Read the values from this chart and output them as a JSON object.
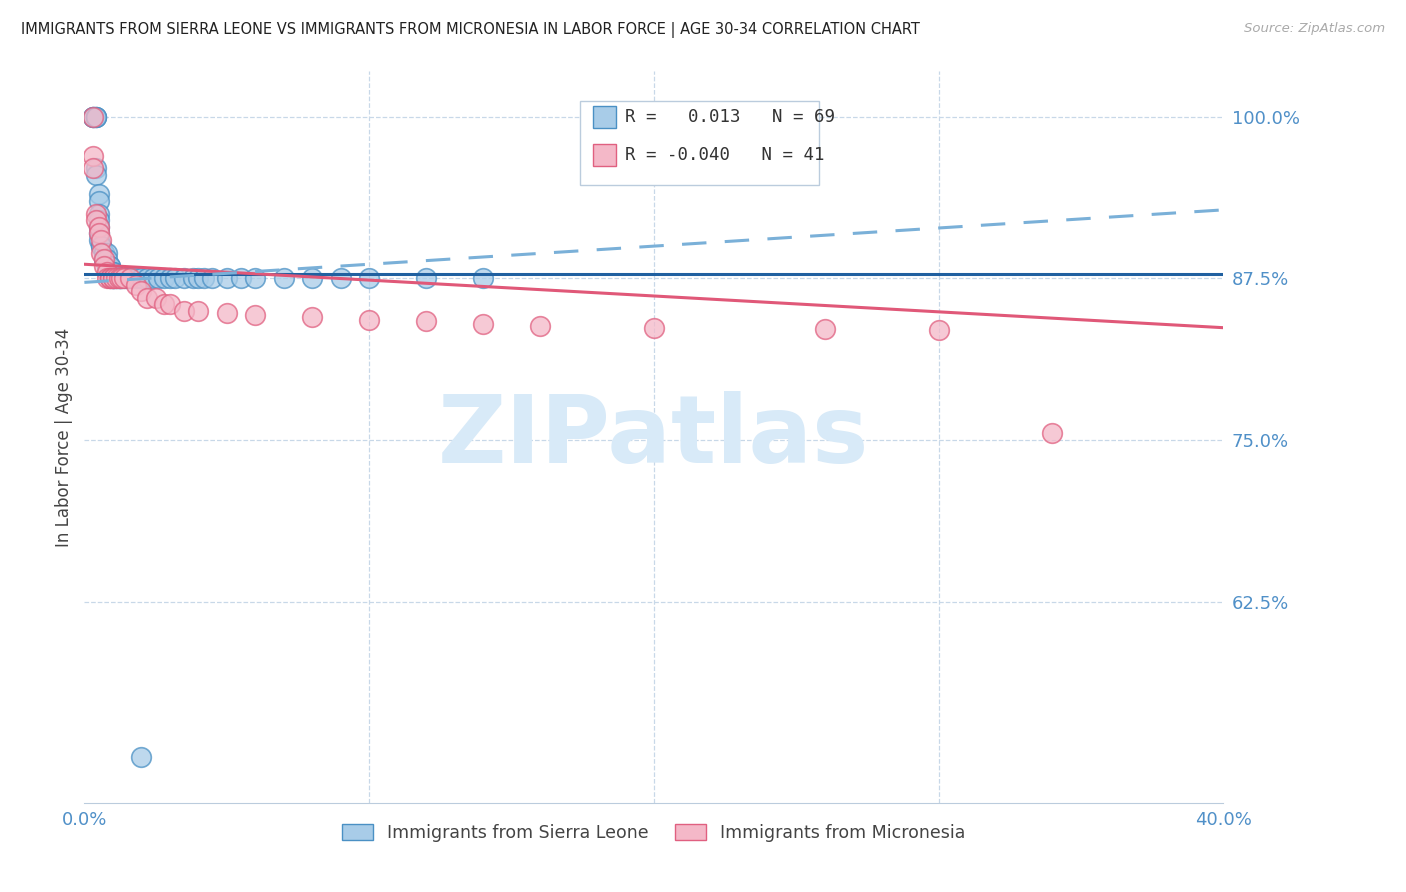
{
  "title": "IMMIGRANTS FROM SIERRA LEONE VS IMMIGRANTS FROM MICRONESIA IN LABOR FORCE | AGE 30-34 CORRELATION CHART",
  "source": "Source: ZipAtlas.com",
  "ylabel": "In Labor Force | Age 30-34",
  "xmin": 0.0,
  "xmax": 0.4,
  "ymin": 0.47,
  "ymax": 1.035,
  "ytick_vals": [
    0.625,
    0.75,
    0.875,
    1.0
  ],
  "ytick_labels": [
    "62.5%",
    "75.0%",
    "87.5%",
    "100.0%"
  ],
  "xtick_vals": [
    0.0,
    0.1,
    0.2,
    0.3,
    0.4
  ],
  "xtick_labels": [
    "0.0%",
    "",
    "",
    "",
    "40.0%"
  ],
  "legend_r_blue": "0.013",
  "legend_n_blue": "69",
  "legend_r_pink": "-0.040",
  "legend_n_pink": "41",
  "color_blue_fill": "#a8cce8",
  "color_blue_edge": "#4a90c4",
  "color_pink_fill": "#f4b8c8",
  "color_pink_edge": "#e06080",
  "color_trend_blue": "#2060a0",
  "color_trend_pink": "#e05878",
  "color_dashed_blue": "#7ab0d8",
  "color_grid": "#c8d8e8",
  "color_axis_text": "#5090c8",
  "watermark_color": "#d8eaf8",
  "watermark_text": "ZIPatlas",
  "legend_label_blue": "Immigrants from Sierra Leone",
  "legend_label_pink": "Immigrants from Micronesia",
  "sl_trend_x0": 0.0,
  "sl_trend_x1": 0.4,
  "sl_trend_y0": 0.8785,
  "sl_trend_y1": 0.8785,
  "mc_trend_x0": 0.0,
  "mc_trend_x1": 0.4,
  "mc_trend_y0": 0.886,
  "mc_trend_y1": 0.837,
  "dash_trend_x0": 0.0,
  "dash_trend_x1": 0.4,
  "dash_trend_y0": 0.872,
  "dash_trend_y1": 0.928,
  "sierra_leone_x": [
    0.003,
    0.003,
    0.003,
    0.004,
    0.004,
    0.004,
    0.004,
    0.004,
    0.005,
    0.005,
    0.005,
    0.005,
    0.005,
    0.005,
    0.005,
    0.006,
    0.006,
    0.007,
    0.007,
    0.007,
    0.007,
    0.008,
    0.008,
    0.008,
    0.008,
    0.009,
    0.009,
    0.009,
    0.009,
    0.009,
    0.009,
    0.01,
    0.01,
    0.01,
    0.01,
    0.01,
    0.011,
    0.011,
    0.012,
    0.012,
    0.013,
    0.013,
    0.014,
    0.015,
    0.015,
    0.016,
    0.018,
    0.02,
    0.022,
    0.024,
    0.026,
    0.028,
    0.03,
    0.032,
    0.035,
    0.038,
    0.04,
    0.042,
    0.045,
    0.05,
    0.055,
    0.06,
    0.07,
    0.08,
    0.09,
    0.1,
    0.12,
    0.14,
    0.02
  ],
  "sierra_leone_y": [
    1.0,
    1.0,
    1.0,
    1.0,
    1.0,
    1.0,
    0.96,
    0.955,
    0.94,
    0.935,
    0.925,
    0.92,
    0.915,
    0.91,
    0.905,
    0.9,
    0.9,
    0.895,
    0.895,
    0.89,
    0.89,
    0.895,
    0.89,
    0.885,
    0.885,
    0.88,
    0.88,
    0.885,
    0.885,
    0.88,
    0.875,
    0.88,
    0.88,
    0.875,
    0.875,
    0.875,
    0.875,
    0.875,
    0.875,
    0.875,
    0.875,
    0.875,
    0.875,
    0.875,
    0.875,
    0.875,
    0.875,
    0.875,
    0.875,
    0.875,
    0.875,
    0.875,
    0.875,
    0.875,
    0.875,
    0.875,
    0.875,
    0.875,
    0.875,
    0.875,
    0.875,
    0.875,
    0.875,
    0.875,
    0.875,
    0.875,
    0.875,
    0.875,
    0.505
  ],
  "micronesia_x": [
    0.003,
    0.003,
    0.003,
    0.004,
    0.004,
    0.005,
    0.005,
    0.006,
    0.006,
    0.007,
    0.007,
    0.008,
    0.008,
    0.009,
    0.009,
    0.01,
    0.01,
    0.011,
    0.012,
    0.013,
    0.014,
    0.016,
    0.018,
    0.02,
    0.022,
    0.025,
    0.028,
    0.03,
    0.035,
    0.04,
    0.05,
    0.06,
    0.08,
    0.1,
    0.12,
    0.14,
    0.16,
    0.2,
    0.26,
    0.3,
    0.34
  ],
  "micronesia_y": [
    1.0,
    0.97,
    0.96,
    0.925,
    0.92,
    0.915,
    0.91,
    0.905,
    0.895,
    0.89,
    0.885,
    0.88,
    0.875,
    0.875,
    0.875,
    0.875,
    0.875,
    0.875,
    0.875,
    0.875,
    0.875,
    0.875,
    0.87,
    0.865,
    0.86,
    0.86,
    0.855,
    0.855,
    0.85,
    0.85,
    0.848,
    0.847,
    0.845,
    0.843,
    0.842,
    0.84,
    0.838,
    0.837,
    0.836,
    0.835,
    0.756
  ]
}
